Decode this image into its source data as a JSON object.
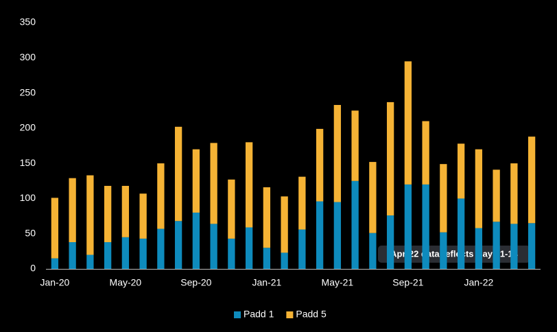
{
  "chart_data": {
    "type": "stacked_bar",
    "categories": [
      "Jan-20",
      null,
      null,
      null,
      "May-20",
      null,
      null,
      null,
      "Sep-20",
      null,
      null,
      null,
      "Jan-21",
      null,
      null,
      null,
      "May-21",
      null,
      null,
      null,
      "Sep-21",
      null,
      null,
      null,
      "Jan-22",
      null,
      null,
      null
    ],
    "series": [
      {
        "name": "Padd 1",
        "color": "#0e8bbd",
        "values": [
          15,
          38,
          20,
          38,
          45,
          43,
          57,
          68,
          80,
          64,
          43,
          59,
          30,
          23,
          56,
          96,
          95,
          125,
          51,
          76,
          120,
          120,
          52,
          100,
          58,
          67,
          64,
          65
        ]
      },
      {
        "name": "Padd 5",
        "color": "#f5b335",
        "values": [
          86,
          91,
          113,
          80,
          73,
          64,
          93,
          134,
          90,
          115,
          84,
          121,
          86,
          80,
          75,
          103,
          138,
          100,
          101,
          161,
          175,
          90,
          97,
          78,
          112,
          74,
          86,
          123
        ]
      }
    ],
    "ylim": [
      0,
      350
    ],
    "yticks": [
      0,
      50,
      100,
      150,
      200,
      250,
      300,
      350
    ],
    "grid": false,
    "legend": "bottom",
    "annotation": "Apr-22 data reflects Days 1-14"
  }
}
